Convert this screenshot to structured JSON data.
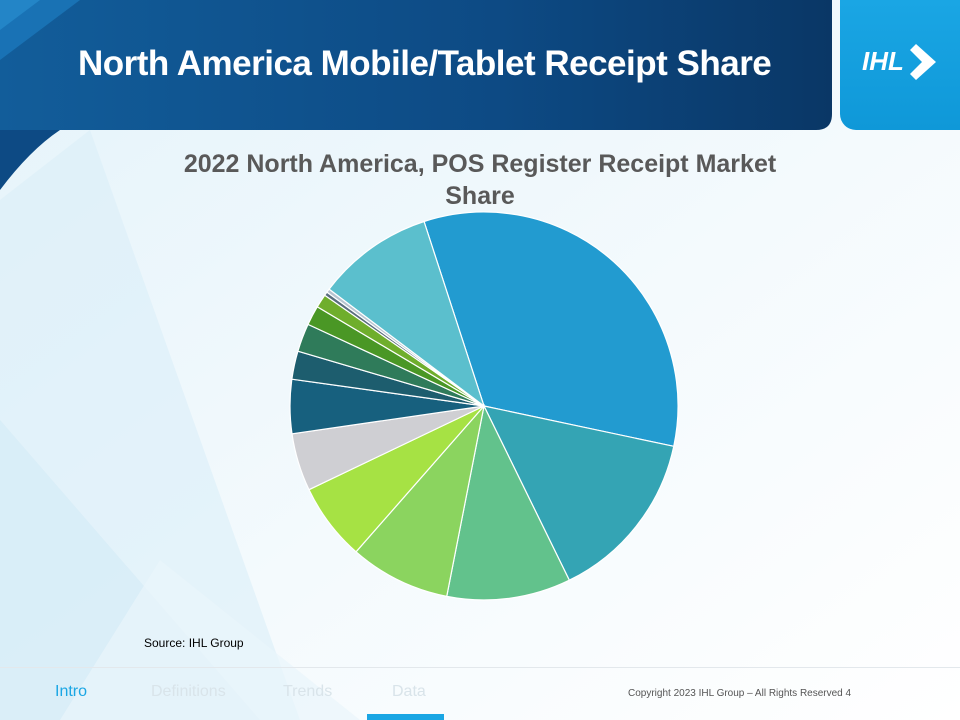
{
  "slide": {
    "title": "North America Mobile/Tablet Receipt Share",
    "source": "Source: IHL Group",
    "copyright": "Copyright 2023 IHL Group – All Rights Reserved",
    "page_number": "4",
    "logo_text": "IHL",
    "nav": [
      {
        "label": "Intro",
        "active": true
      },
      {
        "label": "Definitions",
        "active": false
      },
      {
        "label": "Trends",
        "active": false
      },
      {
        "label": "Data",
        "active": false
      }
    ]
  },
  "colors": {
    "header_dark": "#0b3b6e",
    "header_mid": "#125d9a",
    "accent": "#1aa6e4",
    "slice_colors": [
      "#229bd0",
      "#34a4b4",
      "#62c28c",
      "#8bd45f",
      "#a6e244",
      "#cfcfd3",
      "#17607e",
      "#1d5d6e",
      "#2f7b5a",
      "#4a9725",
      "#6fae2c",
      "#5a6e7e",
      "#b8c4d0",
      "#5bbfcd"
    ]
  },
  "chart_data": {
    "type": "pie",
    "title": "2022 North America, POS Register Receipt Market Share",
    "values": [
      32.6,
      14.1,
      10.1,
      8.2,
      6.3,
      4.7,
      4.4,
      2.3,
      2.3,
      1.6,
      1.1,
      0.3,
      0.3,
      9.5
    ]
  }
}
